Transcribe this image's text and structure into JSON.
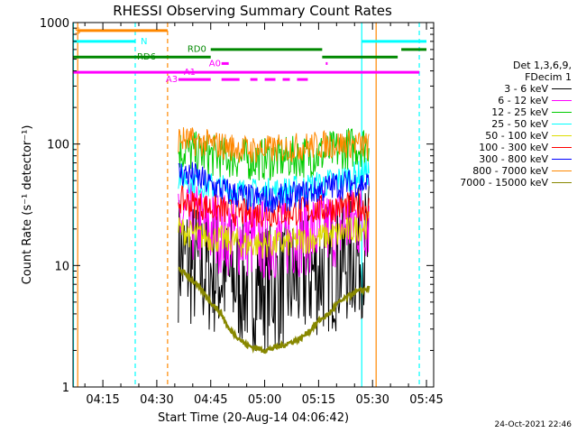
{
  "chart_data": {
    "type": "line",
    "title": "RHESSI Observing Summary Count Rates",
    "xlabel": "Start Time (20-Aug-14 04:06:42)",
    "ylabel": "Count Rate (s⁻¹ detector⁻¹)",
    "y_scale": "log",
    "ylim": [
      1,
      1000
    ],
    "x_range_minutes": [
      "04:06:42",
      "05:47:00"
    ],
    "y_ticks": [
      "1",
      "10",
      "100",
      "1000"
    ],
    "x_ticks": [
      "04:15",
      "04:30",
      "04:45",
      "05:00",
      "05:15",
      "05:30",
      "05:45"
    ],
    "grid": false,
    "legend_position": "right",
    "legend_header": [
      "Det 1,3,6,9,",
      "FDecim 1"
    ],
    "series": [
      {
        "name": "3 - 6 keV",
        "color": "#000000",
        "x": [
          "04:36",
          "04:40",
          "04:45",
          "04:50",
          "04:55",
          "05:00",
          "05:05",
          "05:10",
          "05:15",
          "05:20",
          "05:25",
          "05:29"
        ],
        "values": [
          12,
          10,
          9,
          8,
          7,
          7,
          7,
          8,
          9,
          10,
          12,
          14
        ]
      },
      {
        "name": "6 - 12 keV",
        "color": "#ff00ff",
        "x": [
          "04:36",
          "04:40",
          "04:45",
          "04:50",
          "04:55",
          "05:00",
          "05:05",
          "05:10",
          "05:15",
          "05:20",
          "05:25",
          "05:29"
        ],
        "values": [
          24,
          22,
          20,
          18,
          17,
          16,
          17,
          18,
          19,
          21,
          23,
          25
        ]
      },
      {
        "name": "12 - 25 keV",
        "color": "#00cc00",
        "x": [
          "04:36",
          "04:40",
          "04:45",
          "04:50",
          "04:55",
          "05:00",
          "05:05",
          "05:10",
          "05:15",
          "05:20",
          "05:25",
          "05:29"
        ],
        "values": [
          90,
          85,
          80,
          78,
          75,
          75,
          76,
          78,
          82,
          88,
          95,
          100
        ]
      },
      {
        "name": "25 - 50 keV",
        "color": "#00ffff",
        "x": [
          "04:36",
          "04:40",
          "04:45",
          "04:50",
          "04:55",
          "05:00",
          "05:05",
          "05:10",
          "05:15",
          "05:20",
          "05:25",
          "05:29"
        ],
        "values": [
          55,
          50,
          45,
          42,
          40,
          40,
          41,
          43,
          46,
          50,
          55,
          60
        ]
      },
      {
        "name": "50 - 100 keV",
        "color": "#dddd00",
        "x": [
          "04:36",
          "04:40",
          "04:45",
          "04:50",
          "04:55",
          "05:00",
          "05:05",
          "05:10",
          "05:15",
          "05:20",
          "05:25",
          "05:29"
        ],
        "values": [
          20,
          18,
          17,
          16,
          15,
          15,
          15,
          16,
          17,
          18,
          20,
          22
        ]
      },
      {
        "name": "100 - 300 keV",
        "color": "#ff0000",
        "x": [
          "04:36",
          "04:40",
          "04:45",
          "04:50",
          "04:55",
          "05:00",
          "05:05",
          "05:10",
          "05:15",
          "05:20",
          "05:25",
          "05:29"
        ],
        "values": [
          35,
          32,
          30,
          28,
          27,
          27,
          27,
          28,
          29,
          30,
          31,
          30
        ]
      },
      {
        "name": "300 - 800 keV",
        "color": "#0000ff",
        "x": [
          "04:36",
          "04:40",
          "04:45",
          "04:50",
          "04:55",
          "05:00",
          "05:05",
          "05:10",
          "05:15",
          "05:20",
          "05:25",
          "05:29"
        ],
        "values": [
          58,
          55,
          46,
          40,
          36,
          35,
          36,
          38,
          42,
          46,
          48,
          47
        ]
      },
      {
        "name": "800 - 7000 keV",
        "color": "#ff8800",
        "x": [
          "04:36",
          "04:40",
          "04:45",
          "04:50",
          "04:55",
          "05:00",
          "05:05",
          "05:10",
          "05:15",
          "05:20",
          "05:25",
          "05:29"
        ],
        "values": [
          110,
          105,
          100,
          95,
          90,
          90,
          92,
          95,
          98,
          100,
          100,
          95
        ]
      },
      {
        "name": "7000 - 15000 keV",
        "color": "#888800",
        "x": [
          "04:36",
          "04:38",
          "04:40",
          "04:43",
          "04:45",
          "04:48",
          "04:50",
          "04:53",
          "04:55",
          "05:00",
          "05:05",
          "05:10",
          "05:13",
          "05:15",
          "05:18",
          "05:20",
          "05:23",
          "05:25",
          "05:29"
        ],
        "values": [
          9.5,
          8.5,
          7.5,
          6,
          5,
          4,
          3,
          2.5,
          2.2,
          2,
          2.2,
          2.5,
          3,
          3.5,
          4,
          4.8,
          5.5,
          6,
          6.5
        ]
      }
    ],
    "annotations": {
      "S": "S",
      "N": "N",
      "RD0": "RD0",
      "RD6": "RD6",
      "A1": "A1",
      "A0": "A0",
      "A3": "A3"
    },
    "state_bars": [
      {
        "label": "S",
        "color": "#ff8800",
        "segments": [
          [
            "04:08",
            "04:33"
          ]
        ],
        "level": 860
      },
      {
        "label": "N",
        "color": "#00ffff",
        "segments": [
          [
            "04:06:42",
            "04:24"
          ],
          [
            "05:27",
            "05:45"
          ]
        ],
        "level": 700
      },
      {
        "label": "RD0",
        "color": "#008800",
        "segments": [
          [
            "04:45",
            "05:16"
          ],
          [
            "05:38",
            "05:45"
          ]
        ],
        "level": 600
      },
      {
        "label": "RD6",
        "color": "#008800",
        "segments": [
          [
            "04:06:42",
            "04:45"
          ],
          [
            "05:16",
            "05:37"
          ]
        ],
        "level": 520
      },
      {
        "label": "A0",
        "color": "#ff00ff",
        "segments": [
          [
            "04:48",
            "04:50"
          ],
          [
            "05:17",
            "05:17:30"
          ]
        ],
        "level": 460
      },
      {
        "label": "A1",
        "color": "#ff00ff",
        "segments": [
          [
            "04:06:42",
            "05:43"
          ]
        ],
        "level": 390
      },
      {
        "label": "A3",
        "color": "#ff00ff",
        "segments": [
          [
            "04:36",
            "04:45"
          ],
          [
            "04:48",
            "04:53"
          ],
          [
            "04:56",
            "04:58"
          ],
          [
            "05:00",
            "05:03"
          ],
          [
            "05:05",
            "05:07"
          ],
          [
            "05:09",
            "05:12"
          ]
        ],
        "level": 340
      }
    ],
    "vertical_markers": [
      {
        "time": "04:08",
        "color": "#ff8800",
        "style": "solid"
      },
      {
        "time": "04:06:50",
        "color": "#00ffff",
        "style": "solid"
      },
      {
        "time": "04:24",
        "color": "#00ffff",
        "style": "dashed"
      },
      {
        "time": "04:33",
        "color": "#ff8800",
        "style": "dashed"
      },
      {
        "time": "05:27",
        "color": "#00ffff",
        "style": "solid"
      },
      {
        "time": "05:31",
        "color": "#ff8800",
        "style": "solid"
      },
      {
        "time": "05:43",
        "color": "#00ffff",
        "style": "dashed"
      }
    ]
  },
  "footer": {
    "timestamp": "24-Oct-2021 22:46"
  }
}
